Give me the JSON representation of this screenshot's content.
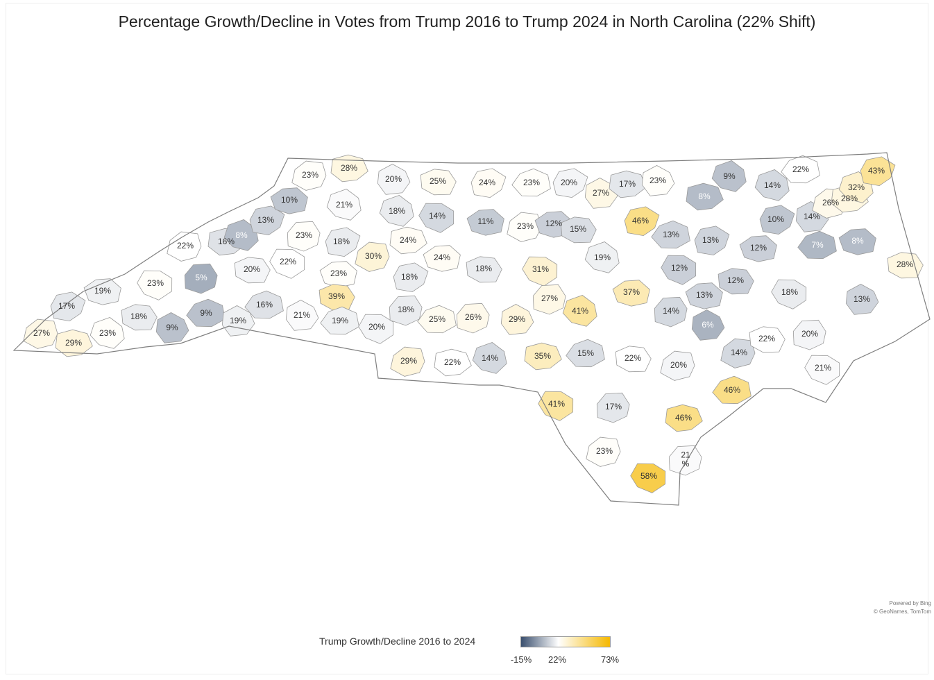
{
  "title": "Percentage Growth/Decline in Votes from Trump 2016 to Trump 2024 in North Carolina (22% Shift)",
  "credit": {
    "line1": "Powered by Bing",
    "line2": "© GeoNames, TomTom"
  },
  "legend": {
    "title": "Trump Growth/Decline 2016 to 2024",
    "min_label": "-15%",
    "mid_label": "22%",
    "max_label": "73%",
    "min": -15,
    "mid": 22,
    "max": 73,
    "colors": {
      "low": "#3a4f6e",
      "mid": "#ffffff",
      "high": "#f5b800"
    }
  },
  "counties": [
    {
      "label": "27%",
      "value": 27
    },
    {
      "label": "29%",
      "value": 29
    },
    {
      "label": "23%",
      "value": 23
    },
    {
      "label": "17%",
      "value": 17
    },
    {
      "label": "19%",
      "value": 19
    },
    {
      "label": "18%",
      "value": 18
    },
    {
      "label": "9%",
      "value": 9
    },
    {
      "label": "9%",
      "value": 9
    },
    {
      "label": "23%",
      "value": 23
    },
    {
      "label": "5%",
      "value": 5
    },
    {
      "label": "22%",
      "value": 22
    },
    {
      "label": "16%",
      "value": 16
    },
    {
      "label": "8%",
      "value": 8
    },
    {
      "label": "13%",
      "value": 13
    },
    {
      "label": "10%",
      "value": 10
    },
    {
      "label": "20%",
      "value": 20
    },
    {
      "label": "19%",
      "value": 19
    },
    {
      "label": "16%",
      "value": 16
    },
    {
      "label": "22%",
      "value": 22
    },
    {
      "label": "23%",
      "value": 23
    },
    {
      "label": "23%",
      "value": 23
    },
    {
      "label": "28%",
      "value": 28
    },
    {
      "label": "21%",
      "value": 21
    },
    {
      "label": "18%",
      "value": 18
    },
    {
      "label": "23%",
      "value": 23
    },
    {
      "label": "39%",
      "value": 39
    },
    {
      "label": "21%",
      "value": 21
    },
    {
      "label": "19%",
      "value": 19
    },
    {
      "label": "20%",
      "value": 20
    },
    {
      "label": "18%",
      "value": 18
    },
    {
      "label": "30%",
      "value": 30
    },
    {
      "label": "24%",
      "value": 24
    },
    {
      "label": "18%",
      "value": 18
    },
    {
      "label": "18%",
      "value": 18
    },
    {
      "label": "24%",
      "value": 24
    },
    {
      "label": "25%",
      "value": 25
    },
    {
      "label": "20%",
      "value": 20
    },
    {
      "label": "25%",
      "value": 25
    },
    {
      "label": "14%",
      "value": 14
    },
    {
      "label": "26%",
      "value": 26
    },
    {
      "label": "29%",
      "value": 29
    },
    {
      "label": "22%",
      "value": 22
    },
    {
      "label": "14%",
      "value": 14
    },
    {
      "label": "24%",
      "value": 24
    },
    {
      "label": "11%",
      "value": 11
    },
    {
      "label": "18%",
      "value": 18
    },
    {
      "label": "29%",
      "value": 29
    },
    {
      "label": "23%",
      "value": 23
    },
    {
      "label": "31%",
      "value": 31
    },
    {
      "label": "27%",
      "value": 27
    },
    {
      "label": "23%",
      "value": 23
    },
    {
      "label": "35%",
      "value": 35
    },
    {
      "label": "41%",
      "value": 41
    },
    {
      "label": "20%",
      "value": 20
    },
    {
      "label": "12%",
      "value": 12
    },
    {
      "label": "15%",
      "value": 15
    },
    {
      "label": "27%",
      "value": 27
    },
    {
      "label": "15%",
      "value": 15
    },
    {
      "label": "41%",
      "value": 41
    },
    {
      "label": "17%",
      "value": 17
    },
    {
      "label": "23%",
      "value": 23
    },
    {
      "label": "17%",
      "value": 17
    },
    {
      "label": "19%",
      "value": 19
    },
    {
      "label": "46%",
      "value": 46
    },
    {
      "label": "37%",
      "value": 37
    },
    {
      "label": "22%",
      "value": 22
    },
    {
      "label": "23%",
      "value": 23
    },
    {
      "label": "13%",
      "value": 13
    },
    {
      "label": "12%",
      "value": 12
    },
    {
      "label": "14%",
      "value": 14
    },
    {
      "label": "20%",
      "value": 20
    },
    {
      "label": "8%",
      "value": 8
    },
    {
      "label": "9%",
      "value": 9
    },
    {
      "label": "13%",
      "value": 13
    },
    {
      "label": "13%",
      "value": 13
    },
    {
      "label": "12%",
      "value": 12
    },
    {
      "label": "6%",
      "value": 6
    },
    {
      "label": "46%",
      "value": 46
    },
    {
      "label": "58%",
      "value": 58
    },
    {
      "label": "21\n%",
      "value": 21
    },
    {
      "label": "14%",
      "value": 14
    },
    {
      "label": "46%",
      "value": 46
    },
    {
      "label": "14%",
      "value": 14
    },
    {
      "label": "10%",
      "value": 10
    },
    {
      "label": "12%",
      "value": 12
    },
    {
      "label": "22%",
      "value": 22
    },
    {
      "label": "14%",
      "value": 14
    },
    {
      "label": "7%",
      "value": 7
    },
    {
      "label": "18%",
      "value": 18
    },
    {
      "label": "20%",
      "value": 20
    },
    {
      "label": "26%",
      "value": 26
    },
    {
      "label": "28%",
      "value": 28
    },
    {
      "label": "32%",
      "value": 32
    },
    {
      "label": "43%",
      "value": 43
    },
    {
      "label": "8%",
      "value": 8
    },
    {
      "label": "28%",
      "value": 28
    },
    {
      "label": "13%",
      "value": 13
    },
    {
      "label": "22%",
      "value": 22
    },
    {
      "label": "21%",
      "value": 21
    }
  ]
}
